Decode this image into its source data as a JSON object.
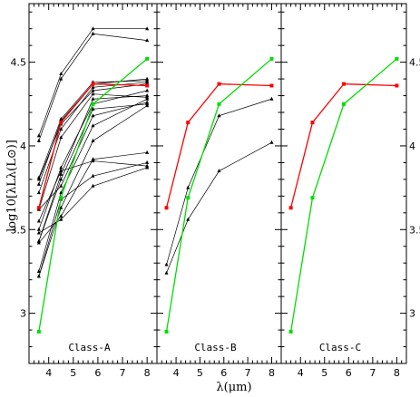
{
  "chart_data": {
    "type": "line",
    "xlabel": "λ(μm)",
    "ylabel": "log10[λLλ(L⊙)]",
    "xlim": [
      3.2,
      8.4
    ],
    "ylim": [
      2.7,
      4.85
    ],
    "x_ticks": [
      "4",
      "5",
      "6",
      "7",
      "8"
    ],
    "y_ticks": [
      "3",
      "3.5",
      "4",
      "4.5"
    ],
    "wavelengths": [
      3.6,
      4.5,
      5.8,
      8.0
    ],
    "colors": {
      "model_red": "#ff0000",
      "model_green": "#00dd00",
      "source": "#000000"
    },
    "panels": [
      {
        "label": "Class-A",
        "sources": [
          [
            4.06,
            4.43,
            4.7,
            4.7
          ],
          [
            4.03,
            4.4,
            4.67,
            4.63
          ],
          [
            3.81,
            4.16,
            4.38,
            4.39
          ],
          [
            3.77,
            4.15,
            4.37,
            4.4
          ],
          [
            3.72,
            4.1,
            4.35,
            4.38
          ],
          [
            3.8,
            4.13,
            4.33,
            4.37
          ],
          [
            3.62,
            4.05,
            4.31,
            4.29
          ],
          [
            3.5,
            3.87,
            4.25,
            4.33
          ],
          [
            3.43,
            3.83,
            4.28,
            4.3
          ],
          [
            3.43,
            3.8,
            4.22,
            4.25
          ],
          [
            3.25,
            3.72,
            4.12,
            4.28
          ],
          [
            3.22,
            3.63,
            4.03,
            4.24
          ],
          [
            3.42,
            3.58,
            3.92,
            3.96
          ],
          [
            3.55,
            3.85,
            3.91,
            3.88
          ],
          [
            3.48,
            3.56,
            3.76,
            3.87
          ],
          [
            3.22,
            3.68,
            3.82,
            3.9
          ],
          [
            3.62,
            3.76,
            4.18,
            4.26
          ]
        ],
        "models": [
          {
            "color": "red",
            "values": [
              3.63,
              4.14,
              4.37,
              4.36
            ]
          },
          {
            "color": "green",
            "values": [
              2.89,
              3.69,
              4.25,
              4.52
            ]
          }
        ]
      },
      {
        "label": "Class-B",
        "sources": [
          [
            3.29,
            3.75,
            4.18,
            4.28
          ],
          [
            3.24,
            3.56,
            3.85,
            4.02
          ]
        ],
        "models": [
          {
            "color": "red",
            "values": [
              3.63,
              4.14,
              4.37,
              4.36
            ]
          },
          {
            "color": "green",
            "values": [
              2.89,
              3.69,
              4.25,
              4.52
            ]
          }
        ]
      },
      {
        "label": "Class-C",
        "sources": [],
        "models": [
          {
            "color": "red",
            "values": [
              3.63,
              4.14,
              4.37,
              4.36
            ]
          },
          {
            "color": "green",
            "values": [
              2.89,
              3.69,
              4.25,
              4.52
            ]
          }
        ]
      }
    ]
  }
}
